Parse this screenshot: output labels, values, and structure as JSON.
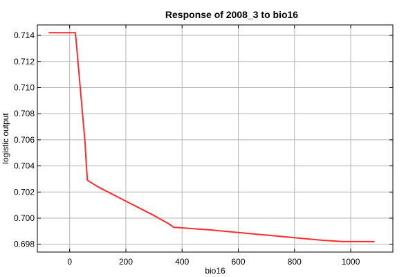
{
  "chart_data": {
    "type": "line",
    "title": "Response of 2008_3 to bio16",
    "xlabel": "bio16",
    "ylabel": "logistic output",
    "xlim": [
      -115,
      1150
    ],
    "ylim": [
      0.6974,
      0.7148
    ],
    "xticks": [
      0,
      200,
      400,
      600,
      800,
      1000
    ],
    "xtick_labels": [
      "0",
      "200",
      "400",
      "600",
      "800",
      "1000"
    ],
    "yticks": [
      0.698,
      0.7,
      0.702,
      0.704,
      0.706,
      0.708,
      0.71,
      0.712,
      0.714
    ],
    "ytick_labels": [
      "0.698",
      "0.700",
      "0.702",
      "0.704",
      "0.706",
      "0.708",
      "0.710",
      "0.712",
      "0.714"
    ],
    "grid": true,
    "series": [
      {
        "color": "#ff2a2a",
        "x": [
          -75,
          20,
          22,
          55,
          56,
          63,
          100,
          200,
          300,
          350,
          370,
          500,
          600,
          700,
          800,
          900,
          975,
          1085
        ],
        "y": [
          0.7142,
          0.7142,
          0.7138,
          0.7057,
          0.7052,
          0.7029,
          0.7024,
          0.7013,
          0.7002,
          0.6996,
          0.6993,
          0.6991,
          0.6989,
          0.6987,
          0.6985,
          0.6983,
          0.6982,
          0.6982
        ]
      }
    ]
  }
}
